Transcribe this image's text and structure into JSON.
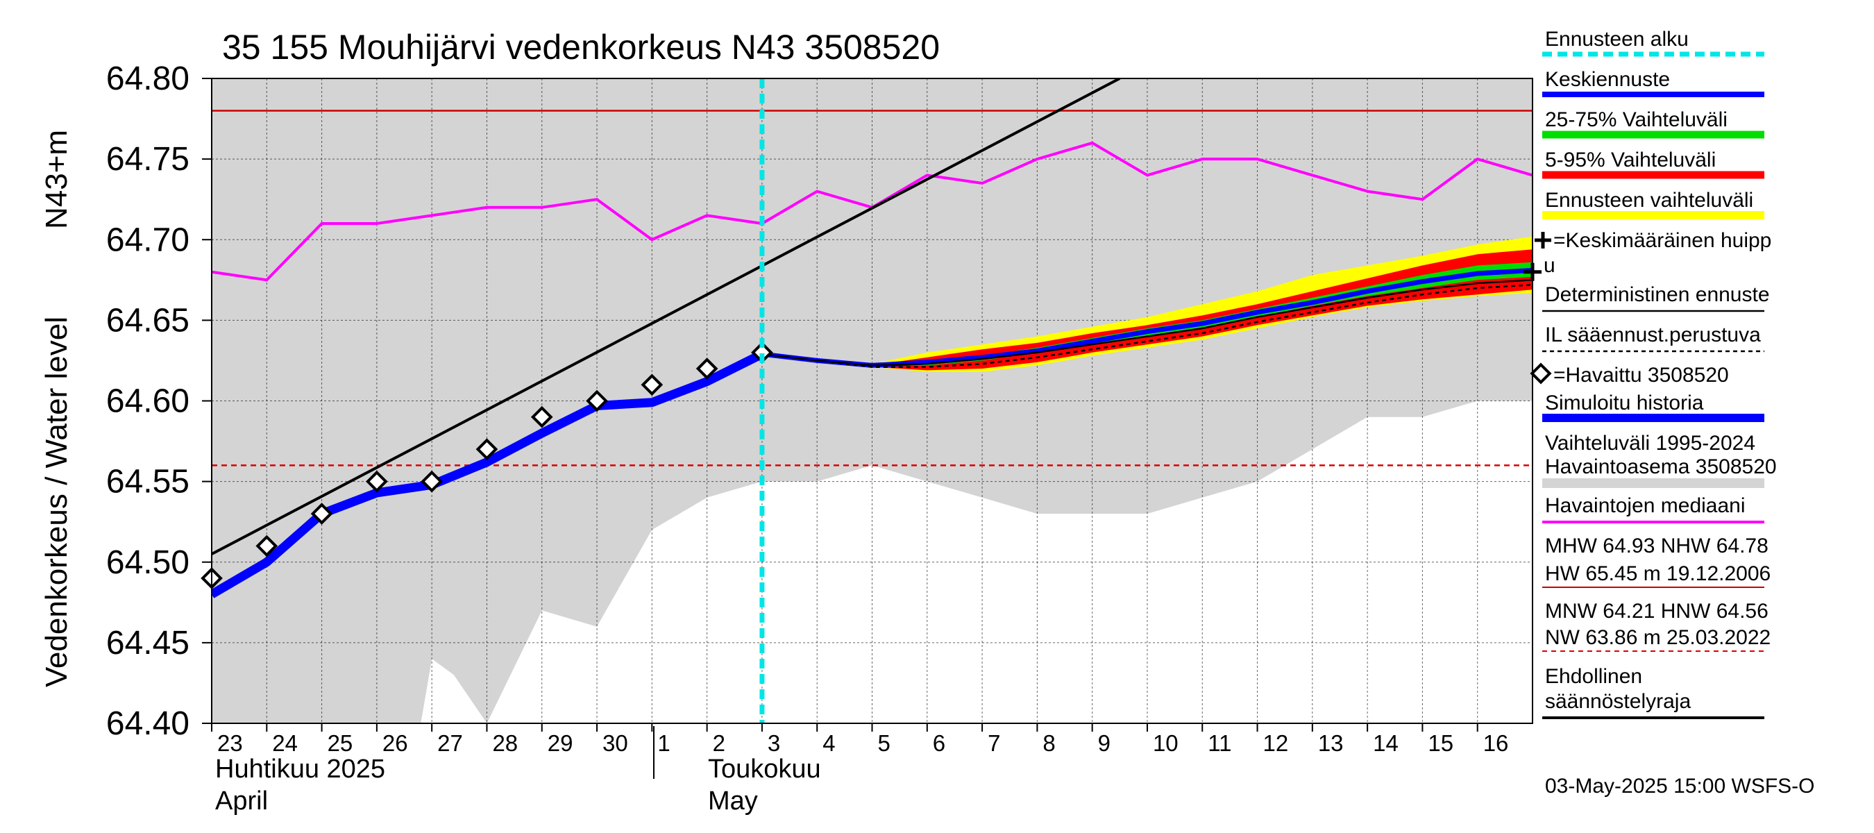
{
  "title": "35 155 Mouhijärvi vedenkorkeus N43 3508520",
  "ylabel": "Vedenkorkeus / Water level",
  "yunit": "N43+m",
  "timestamp": "03-May-2025 15:00 WSFS-O",
  "months": [
    {
      "label_fi": "Huhtikuu  2025",
      "label_en": "April"
    },
    {
      "label_fi": "Toukokuu",
      "label_en": "May"
    }
  ],
  "legend": {
    "forecast_start": "Ennusteen alku",
    "mean_forecast": "Keskiennuste",
    "range_25_75": "25-75% Vaihteluväli",
    "range_5_95": "5-95% Vaihteluväli",
    "forecast_range": "Ennusteen vaihteluväli",
    "mean_peak_1": "=Keskimääräinen huipp",
    "mean_peak_2": "u",
    "deterministic": "Deterministinen ennuste",
    "weather_based": "IL sääennust.perustuva",
    "observed": "=Havaittu 3508520",
    "simulated": "Simuloitu historia",
    "hist_range_1": "Vaihteluväli 1995-2024",
    "hist_range_2": " Havaintoasema 3508520",
    "median": "Havaintojen mediaani",
    "stats_1": "MHW  64.93 NHW  64.78",
    "stats_2": "HW  65.45 m 19.12.2006",
    "stats_3": "MNW  64.21 HNW  64.56",
    "stats_4": "NW  63.86 m 25.03.2022",
    "regulation_1": "Ehdollinen",
    "regulation_2": "säännöstelyraja"
  },
  "chart_data": {
    "type": "line",
    "x_tick_labels": [
      "23",
      "24",
      "25",
      "26",
      "27",
      "28",
      "29",
      "30",
      "1",
      "2",
      "3",
      "4",
      "5",
      "6",
      "7",
      "8",
      "9",
      "10",
      "11",
      "12",
      "13",
      "14",
      "15",
      "16"
    ],
    "x_tick_days": [
      0,
      1,
      2,
      3,
      4,
      5,
      6,
      7,
      8,
      9,
      10,
      11,
      12,
      13,
      14,
      15,
      16,
      17,
      18,
      19,
      20,
      21,
      22,
      23
    ],
    "x_unit": "days from 23 April 2025 (day 0 = 23.4.2025)",
    "xlim": [
      0,
      24
    ],
    "ylim": [
      64.4,
      64.8
    ],
    "y_ticks": [
      64.4,
      64.45,
      64.5,
      64.55,
      64.6,
      64.65,
      64.7,
      64.75,
      64.8
    ],
    "y_tick_labels": [
      "64.40",
      "64.45",
      "64.50",
      "64.55",
      "64.60",
      "64.65",
      "64.70",
      "64.75",
      "64.80"
    ],
    "grid": true,
    "forecast_start_day": 10,
    "reference_lines": {
      "NHW": 64.78,
      "HNW": 64.56
    },
    "historical_range": {
      "x": [
        0,
        3.5,
        3.8,
        4,
        4.4,
        5,
        6,
        7,
        8,
        9,
        10,
        11,
        12,
        13,
        14,
        15,
        16,
        17,
        18,
        19,
        20,
        21,
        22,
        23,
        24
      ],
      "lower": [
        64.4,
        64.4,
        64.4,
        64.44,
        64.43,
        64.4,
        64.47,
        64.46,
        64.52,
        64.54,
        64.55,
        64.55,
        64.56,
        64.55,
        64.54,
        64.53,
        64.53,
        64.53,
        64.54,
        64.55,
        64.57,
        64.59,
        64.59,
        64.6,
        64.6
      ],
      "upper": [
        64.8,
        64.8,
        64.8,
        64.8,
        64.8,
        64.8,
        64.8,
        64.8,
        64.8,
        64.8,
        64.8,
        64.8,
        64.8,
        64.8,
        64.8,
        64.8,
        64.8,
        64.8,
        64.8,
        64.8,
        64.8,
        64.8,
        64.8,
        64.8,
        64.8
      ]
    },
    "median": {
      "x": [
        0,
        1,
        2,
        3,
        4,
        5,
        6,
        7,
        8,
        9,
        10,
        11,
        12,
        13,
        14,
        15,
        16,
        17,
        18,
        19,
        20,
        21,
        22,
        23,
        24
      ],
      "y": [
        64.68,
        64.675,
        64.71,
        64.71,
        64.715,
        64.72,
        64.72,
        64.725,
        64.7,
        64.715,
        64.71,
        64.73,
        64.72,
        64.74,
        64.735,
        64.75,
        64.76,
        64.74,
        64.75,
        64.75,
        64.74,
        64.73,
        64.725,
        64.75,
        64.74
      ]
    },
    "trend_line": {
      "x": [
        0,
        16.5
      ],
      "y": [
        64.505,
        64.8
      ]
    },
    "simulated_history": {
      "x": [
        0,
        1,
        2,
        3,
        4,
        5,
        6,
        7,
        8,
        9,
        10
      ],
      "y": [
        64.48,
        64.5,
        64.53,
        64.543,
        64.548,
        64.562,
        64.58,
        64.597,
        64.599,
        64.612,
        64.629
      ]
    },
    "observed": {
      "x": [
        0,
        1,
        2,
        3,
        4,
        5,
        6,
        7,
        8,
        9,
        10
      ],
      "y": [
        64.49,
        64.51,
        64.53,
        64.55,
        64.55,
        64.57,
        64.59,
        64.6,
        64.61,
        64.62,
        64.63
      ]
    },
    "forecast": {
      "x": [
        10,
        11,
        12,
        13,
        14,
        15,
        16,
        17,
        18,
        19,
        20,
        21,
        22,
        23,
        24
      ],
      "env_lo": [
        64.628,
        64.625,
        64.621,
        64.618,
        64.618,
        64.622,
        64.628,
        64.633,
        64.638,
        64.645,
        64.652,
        64.658,
        64.662,
        64.665,
        64.667
      ],
      "env_hi": [
        64.63,
        64.626,
        64.623,
        64.63,
        64.635,
        64.64,
        64.646,
        64.652,
        64.66,
        64.668,
        64.678,
        64.684,
        64.69,
        64.697,
        64.702
      ],
      "p5": [
        64.629,
        64.625,
        64.621,
        64.619,
        64.62,
        64.624,
        64.63,
        64.635,
        64.64,
        64.647,
        64.653,
        64.659,
        64.663,
        64.666,
        64.669
      ],
      "p95": [
        64.629,
        64.626,
        64.622,
        64.627,
        64.632,
        64.636,
        64.642,
        64.647,
        64.653,
        64.66,
        64.668,
        64.676,
        64.684,
        64.691,
        64.694
      ],
      "p25": [
        64.629,
        64.625,
        64.621,
        64.622,
        64.625,
        64.63,
        64.635,
        64.64,
        64.645,
        64.652,
        64.659,
        64.665,
        64.67,
        64.675,
        64.677
      ],
      "p75": [
        64.629,
        64.625,
        64.622,
        64.625,
        64.628,
        64.633,
        64.639,
        64.645,
        64.65,
        64.657,
        64.664,
        64.671,
        64.678,
        64.684,
        64.686
      ],
      "mean": [
        64.629,
        64.625,
        64.622,
        64.624,
        64.627,
        64.631,
        64.637,
        64.643,
        64.648,
        64.655,
        64.661,
        64.668,
        64.674,
        64.679,
        64.681
      ],
      "deterministic": [
        64.629,
        64.625,
        64.622,
        64.623,
        64.626,
        64.63,
        64.635,
        64.64,
        64.645,
        64.652,
        64.658,
        64.664,
        64.669,
        64.673,
        64.675
      ],
      "weather_based": [
        64.629,
        64.625,
        64.621,
        64.621,
        64.623,
        64.627,
        64.632,
        64.637,
        64.642,
        64.649,
        64.655,
        64.661,
        64.666,
        64.67,
        64.672
      ]
    },
    "mean_peak": {
      "x": 24,
      "y": 64.68
    },
    "colors": {
      "hist_range": "#d4d4d4",
      "median": "#ff00ff",
      "forecast_start": "#00e5e5",
      "mean_forecast": "#0000ff",
      "range_25_75": "#00dd00",
      "range_5_95": "#ff0000",
      "forecast_range": "#ffff00",
      "simulated": "#0000ff",
      "nhw_line": "#cc0000",
      "hnw_line": "#dd0000",
      "trend": "#000000"
    }
  }
}
